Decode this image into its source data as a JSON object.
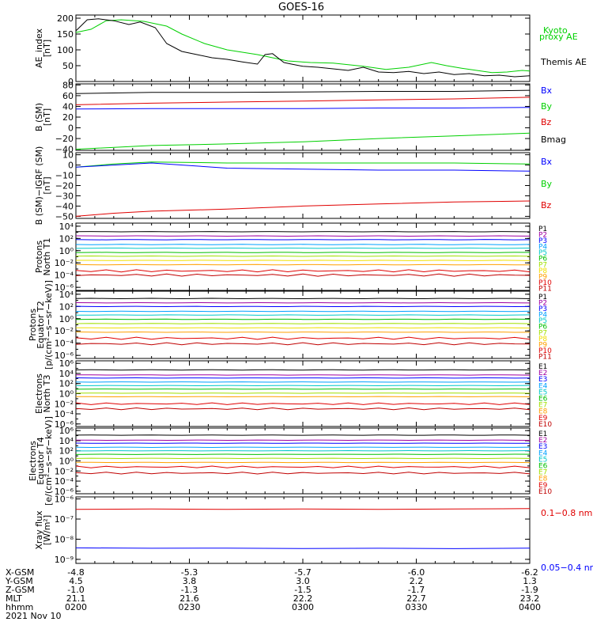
{
  "title": "GOES-16",
  "colors": {
    "black": "#000000",
    "green": "#00d000",
    "blue": "#0000ff",
    "red": "#e00000",
    "p": [
      "#000000",
      "#a000a0",
      "#0000ff",
      "#00a0ff",
      "#00c8c8",
      "#00c000",
      "#a0e000",
      "#f0e000",
      "#ffa000",
      "#e00000",
      "#c00000"
    ]
  },
  "chart_data": {
    "type": "line",
    "x": {
      "range": [
        0,
        120
      ],
      "ticks": [
        0,
        30,
        60,
        90,
        120
      ],
      "rows": [
        {
          "label": "X-GSM",
          "values": [
            "-4.8",
            "-5.3",
            "-5.7",
            "-6.0",
            "-6.2"
          ]
        },
        {
          "label": "Y-GSM",
          "values": [
            "4.5",
            "3.8",
            "3.0",
            "2.2",
            "1.3"
          ]
        },
        {
          "label": "Z-GSM",
          "values": [
            "-1.0",
            "-1.3",
            "-1.5",
            "-1.7",
            "-1.9"
          ]
        },
        {
          "label": "MLT",
          "values": [
            "21.1",
            "21.6",
            "22.2",
            "22.7",
            "23.2"
          ]
        },
        {
          "label": "hhmm",
          "values": [
            "0200",
            "0230",
            "0300",
            "0330",
            "0400"
          ]
        }
      ],
      "date": "2021 Nov 10"
    },
    "panels": [
      {
        "id": "ae",
        "ylabel": [
          "AE_index",
          "[nT]"
        ],
        "ylim": [
          0,
          210
        ],
        "yticks": [
          "0",
          "50",
          "100",
          "150",
          "200"
        ],
        "ytick_values": [
          0,
          50,
          100,
          150,
          200
        ],
        "legend": [
          {
            "text": "Kyoto",
            "color": "#00d000"
          },
          {
            "text": "proxy AE",
            "color": "#00d000"
          },
          {
            "text": "Themis AE",
            "color": "#000000"
          }
        ],
        "series": [
          {
            "name": "Kyoto proxy AE",
            "color": "#00d000",
            "t": [
              0,
              4,
              8,
              12,
              18,
              24,
              28,
              34,
              40,
              48,
              56,
              62,
              68,
              76,
              82,
              88,
              94,
              98,
              102,
              106,
              110,
              114,
              118,
              120
            ],
            "v": [
              155,
              165,
              192,
              195,
              190,
              175,
              150,
              120,
              100,
              85,
              65,
              60,
              58,
              48,
              38,
              45,
              60,
              50,
              42,
              35,
              28,
              30,
              35,
              33
            ]
          },
          {
            "name": "Themis AE",
            "color": "#000000",
            "t": [
              0,
              3,
              6,
              10,
              14,
              17,
              21,
              24,
              28,
              32,
              36,
              40,
              44,
              48,
              50,
              52,
              55,
              57,
              60,
              64,
              68,
              72,
              76,
              80,
              84,
              88,
              92,
              96,
              100,
              104,
              108,
              112,
              116,
              120
            ],
            "v": [
              160,
              195,
              198,
              192,
              180,
              188,
              170,
              120,
              95,
              85,
              75,
              70,
              62,
              55,
              85,
              88,
              60,
              55,
              48,
              45,
              40,
              35,
              45,
              30,
              28,
              32,
              25,
              30,
              22,
              25,
              18,
              20,
              15,
              18
            ]
          }
        ]
      },
      {
        "id": "b",
        "ylabel": [
          "B (SM)",
          "[nT]"
        ],
        "ylim": [
          -42,
          82
        ],
        "yticks": [
          "80",
          "60",
          "40",
          "20",
          "0",
          "−20",
          "−40"
        ],
        "ytick_values": [
          80,
          60,
          40,
          20,
          0,
          -20,
          -40
        ],
        "legend": [
          {
            "text": "Bx",
            "color": "#0000ff"
          },
          {
            "text": "By",
            "color": "#00d000"
          },
          {
            "text": "Bz",
            "color": "#e00000"
          },
          {
            "text": "Bmag",
            "color": "#000000"
          }
        ],
        "series": [
          {
            "name": "Bmag",
            "color": "#000000",
            "t": [
              0,
              20,
              40,
              60,
              80,
              100,
              120
            ],
            "v": [
              64,
              66,
              66,
              67,
              68,
              68,
              70
            ]
          },
          {
            "name": "Bz",
            "color": "#e00000",
            "t": [
              0,
              20,
              40,
              60,
              80,
              100,
              120
            ],
            "v": [
              43,
              46,
              48,
              50,
              52,
              54,
              57
            ]
          },
          {
            "name": "Bx",
            "color": "#0000ff",
            "t": [
              0,
              20,
              40,
              60,
              80,
              100,
              120
            ],
            "v": [
              35,
              36,
              36,
              36,
              37,
              37,
              38
            ]
          },
          {
            "name": "By",
            "color": "#00d000",
            "t": [
              0,
              20,
              40,
              60,
              80,
              100,
              120
            ],
            "v": [
              -40,
              -33,
              -30,
              -26,
              -20,
              -15,
              -10
            ]
          }
        ]
      },
      {
        "id": "dbb",
        "ylabel": [
          "B (SM)−IGRF (SM)",
          "[nT]"
        ],
        "ylim": [
          -52,
          12
        ],
        "yticks": [
          "10",
          "0",
          "−10",
          "−20",
          "−30",
          "−40",
          "−50"
        ],
        "ytick_values": [
          10,
          0,
          -10,
          -20,
          -30,
          -40,
          -50
        ],
        "legend": [
          {
            "text": "Bx",
            "color": "#0000ff"
          },
          {
            "text": "By",
            "color": "#00d000"
          },
          {
            "text": "Bz",
            "color": "#e00000"
          }
        ],
        "series": [
          {
            "name": "By",
            "color": "#00d000",
            "t": [
              0,
              10,
              20,
              40,
              60,
              80,
              100,
              120
            ],
            "v": [
              -2,
              1,
              3,
              2,
              2,
              2,
              2,
              1
            ]
          },
          {
            "name": "Bx",
            "color": "#0000ff",
            "t": [
              0,
              10,
              20,
              40,
              60,
              80,
              100,
              120
            ],
            "v": [
              -2,
              0,
              2,
              -3,
              -4,
              -5,
              -5,
              -6
            ]
          },
          {
            "name": "Bz",
            "color": "#e00000",
            "t": [
              0,
              10,
              20,
              40,
              60,
              80,
              100,
              120
            ],
            "v": [
              -50,
              -47,
              -45,
              -43,
              -40,
              -38,
              -36,
              -35
            ]
          }
        ]
      },
      {
        "id": "prot_n",
        "ylabel": [
          "Protons",
          "North T1"
        ],
        "log": true,
        "ylim": [
          -6.5,
          4.5
        ],
        "yticks": [
          "10⁴",
          "10²",
          "10⁰",
          "10⁻²",
          "10⁻⁴",
          "10⁻⁶"
        ],
        "ytick_values": [
          4,
          2,
          0,
          -2,
          -4,
          -6
        ],
        "legend_labels": [
          "P1",
          "P2",
          "P3",
          "P4",
          "P5",
          "P6",
          "P7",
          "P8",
          "P9",
          "P10",
          "P11"
        ],
        "channel_levels": [
          3.1,
          2.4,
          1.8,
          1.0,
          0.4,
          -0.3,
          -0.9,
          -1.6,
          -2.3,
          -3.3,
          -4.0
        ]
      },
      {
        "id": "prot_e",
        "ylabel": [
          "Protons",
          "Equator T2",
          "[p/(cm²−s−sr−keV)]"
        ],
        "log": true,
        "ylim": [
          -6.5,
          4.5
        ],
        "yticks": [
          "10⁴",
          "10²",
          "10⁰",
          "10⁻²",
          "10⁻⁴",
          "10⁻⁶"
        ],
        "ytick_values": [
          4,
          2,
          0,
          -2,
          -4,
          -6
        ],
        "legend_labels": [
          "P1",
          "P2",
          "P3",
          "P4",
          "P5",
          "P6",
          "P7",
          "P8",
          "P9",
          "P10",
          "P11"
        ],
        "channel_levels": [
          3.3,
          2.6,
          2.0,
          1.2,
          0.6,
          -0.1,
          -0.8,
          -1.5,
          -2.2,
          -3.2,
          -4.1
        ]
      },
      {
        "id": "elec_n",
        "ylabel": [
          "Electrons",
          "North T3"
        ],
        "log": true,
        "ylim": [
          -6.5,
          6.5
        ],
        "yticks": [
          "10⁶",
          "10⁴",
          "10²",
          "10⁰",
          "10⁻²",
          "10⁻⁴",
          "10⁻⁶"
        ],
        "ytick_values": [
          6,
          4,
          2,
          0,
          -2,
          -4,
          -6
        ],
        "legend_labels": [
          "E1",
          "E2",
          "E3",
          "E4",
          "E5",
          "E6",
          "E7",
          "E8",
          "E9",
          "E10"
        ],
        "channel_levels": [
          4.7,
          3.7,
          3.1,
          2.3,
          1.6,
          0.9,
          0.1,
          -0.6,
          -2.0,
          -3.0
        ]
      },
      {
        "id": "elec_e",
        "ylabel": [
          "Electrons",
          "Equator T4",
          "[e/(cm²−s−sr−keV)]"
        ],
        "log": true,
        "ylim": [
          -6.5,
          6.5
        ],
        "yticks": [
          "10⁶",
          "10⁴",
          "10²",
          "10⁰",
          "10⁻²",
          "10⁻⁴",
          "10⁻⁶"
        ],
        "ytick_values": [
          6,
          4,
          2,
          0,
          -2,
          -4,
          -6
        ],
        "legend_labels": [
          "E1",
          "E2",
          "E3",
          "E4",
          "E5",
          "E6",
          "E7",
          "E8",
          "E9",
          "E10"
        ],
        "channel_levels": [
          5.1,
          4.1,
          3.5,
          2.7,
          2.0,
          1.3,
          0.5,
          -0.3,
          -1.2,
          -2.4
        ]
      },
      {
        "id": "xray",
        "ylabel": [
          "Xray flux",
          "[W/m²]"
        ],
        "log": true,
        "ylim": [
          -9.2,
          -5.9
        ],
        "yticks": [
          "10⁻⁶",
          "10⁻⁷",
          "10⁻⁸",
          "10⁻⁹"
        ],
        "ytick_values": [
          -6,
          -7,
          -8,
          -9
        ],
        "legend": [
          {
            "text": "0.1−0.8 nm",
            "color": "#e00000"
          },
          {
            "text": "0.05−0.4 nm",
            "color": "#0000ff"
          }
        ],
        "series": [
          {
            "name": "0.1-0.8 nm",
            "color": "#e00000",
            "t": [
              0,
              20,
              40,
              60,
              80,
              100,
              120
            ],
            "v": [
              -6.52,
              -6.5,
              -6.52,
              -6.5,
              -6.52,
              -6.5,
              -6.48
            ]
          },
          {
            "name": "0.05-0.4 nm",
            "color": "#0000ff",
            "t": [
              0,
              20,
              40,
              60,
              80,
              100,
              120
            ],
            "v": [
              -8.43,
              -8.45,
              -8.44,
              -8.46,
              -8.45,
              -8.47,
              -8.44
            ]
          }
        ]
      }
    ]
  }
}
